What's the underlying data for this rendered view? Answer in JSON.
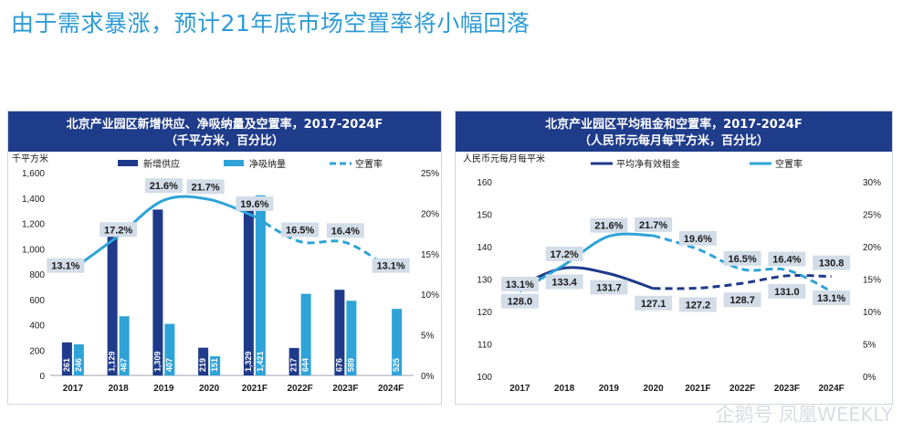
{
  "page": {
    "title": "由于需求暴涨，预计21年底市场空置率将小幅回落"
  },
  "watermark": "企鹅号 凤凰WEEKLY",
  "colors": {
    "dark": "#1f3a8a",
    "light": "#2ea3d8",
    "label_bg": "#d3dde8",
    "title_bar": "#1f3c8a"
  },
  "chart_data": [
    {
      "type": "bar+line",
      "title_line1": "北京产业园区新增供应、净吸纳量及空置率，2017-2024F",
      "title_line2": "（千平方米，百分比）",
      "ylabel_left": "千平方米",
      "categories": [
        "2017",
        "2018",
        "2019",
        "2020",
        "2021F",
        "2022F",
        "2023F",
        "2024F"
      ],
      "ylim_left": [
        0,
        1600
      ],
      "yticks_left": [
        "0",
        "200",
        "400",
        "600",
        "800",
        "1,000",
        "1,200",
        "1,400",
        "1,600"
      ],
      "ylim_right": [
        0,
        25
      ],
      "yticks_right": [
        "0%",
        "5%",
        "10%",
        "15%",
        "20%",
        "25%"
      ],
      "series": [
        {
          "name": "新增供应",
          "kind": "bar",
          "values": [
            261,
            1129,
            1309,
            219,
            1329,
            217,
            676,
            null
          ],
          "labels": [
            "261",
            "1,129",
            "1,309",
            "219",
            "1,329",
            "217",
            "676",
            ""
          ]
        },
        {
          "name": "净吸纳量",
          "kind": "bar",
          "values": [
            246,
            467,
            407,
            151,
            1421,
            644,
            589,
            525
          ],
          "labels": [
            "246",
            "467",
            "407",
            "151",
            "1,421",
            "644",
            "589",
            "525"
          ]
        },
        {
          "name": "空置率",
          "kind": "line",
          "values": [
            13.1,
            17.2,
            21.6,
            21.7,
            19.6,
            16.5,
            16.4,
            13.1
          ],
          "labels": [
            "13.1%",
            "17.2%",
            "21.6%",
            "21.7%",
            "19.6%",
            "16.5%",
            "16.4%",
            "13.1%"
          ]
        }
      ]
    },
    {
      "type": "line",
      "title_line1": "北京产业园区平均租金和空置率，2017-2024F",
      "title_line2": "（人民币元每月每平方米，百分比）",
      "ylabel_left": "人民币元每月每平米",
      "categories": [
        "2017",
        "2018",
        "2019",
        "2020",
        "2021F",
        "2022F",
        "2023F",
        "2024F"
      ],
      "ylim_left": [
        100,
        160
      ],
      "yticks_left": [
        "100",
        "110",
        "120",
        "130",
        "140",
        "150",
        "160"
      ],
      "ylim_right": [
        0,
        30
      ],
      "yticks_right": [
        "0%",
        "5%",
        "10%",
        "15%",
        "20%",
        "25%",
        "30%"
      ],
      "series": [
        {
          "name": "平均净有效租金",
          "kind": "line",
          "axis": "left",
          "values": [
            128.0,
            133.4,
            131.7,
            127.1,
            127.2,
            128.7,
            131.0,
            130.8
          ],
          "labels": [
            "128.0",
            "133.4",
            "131.7",
            "127.1",
            "127.2",
            "128.7",
            "131.0",
            "130.8"
          ]
        },
        {
          "name": "空置率",
          "kind": "line",
          "axis": "right",
          "values": [
            13.1,
            17.2,
            21.6,
            21.7,
            19.6,
            16.5,
            16.4,
            13.1
          ],
          "labels": [
            "13.1%",
            "17.2%",
            "21.6%",
            "21.7%",
            "19.6%",
            "16.5%",
            "16.4%",
            "13.1%"
          ]
        }
      ]
    }
  ]
}
